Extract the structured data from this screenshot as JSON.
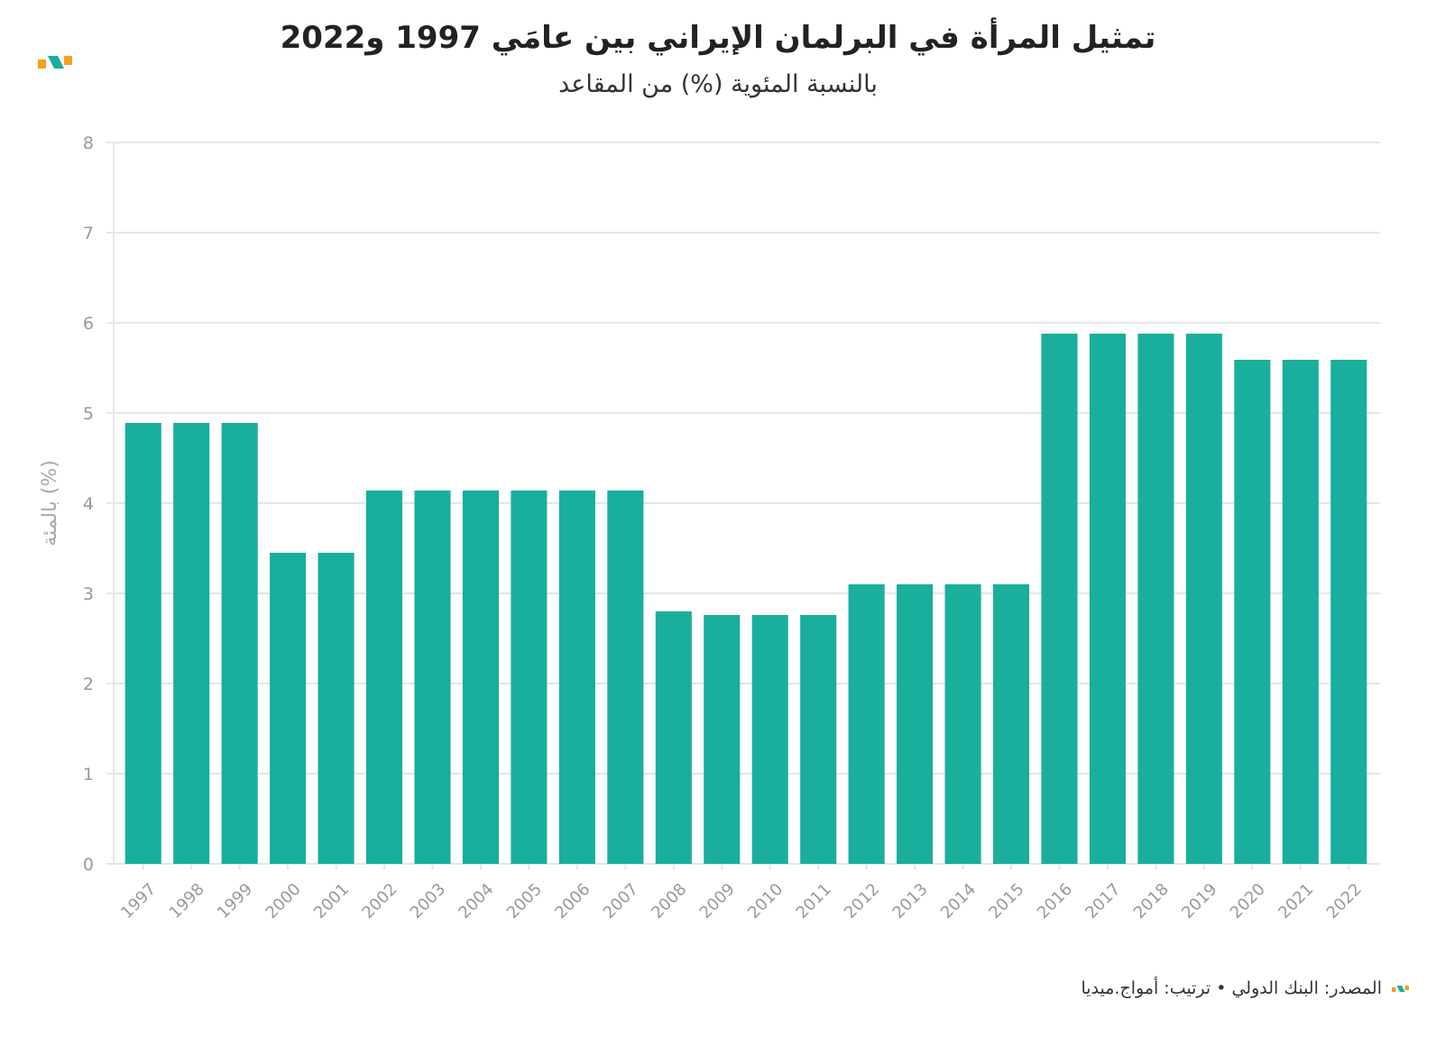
{
  "header": {
    "title": "تمثيل المرأة في البرلمان الإيراني بين عامَي 1997 و2022",
    "subtitle": "بالنسبة المئوية (%) من المقاعد"
  },
  "footer": {
    "source": "المصدر: البنك الدولي • ترتيب: أمواج.ميديا"
  },
  "colors": {
    "bar": "#1aae9c",
    "logo_orange": "#f4a020",
    "logo_teal": "#1aae9c",
    "grid": "#e6e6e6",
    "tick": "#999999"
  },
  "chart_data": {
    "type": "bar",
    "categories": [
      "1997",
      "1998",
      "1999",
      "2000",
      "2001",
      "2002",
      "2003",
      "2004",
      "2005",
      "2006",
      "2007",
      "2008",
      "2009",
      "2010",
      "2011",
      "2012",
      "2013",
      "2014",
      "2015",
      "2016",
      "2017",
      "2018",
      "2019",
      "2020",
      "2021",
      "2022"
    ],
    "values": [
      4.89,
      4.89,
      4.89,
      3.45,
      3.45,
      4.14,
      4.14,
      4.14,
      4.14,
      4.14,
      4.14,
      2.8,
      2.76,
      2.76,
      2.76,
      3.1,
      3.1,
      3.1,
      3.1,
      5.88,
      5.88,
      5.88,
      5.88,
      5.59,
      5.59,
      5.59
    ],
    "title": "تمثيل المرأة في البرلمان الإيراني بين عامَي 1997 و2022",
    "subtitle": "بالنسبة المئوية (%) من المقاعد",
    "ylabel": "بالمئة (%)",
    "xlabel": "",
    "ylim": [
      0,
      8
    ],
    "yticks": [
      "0",
      "1",
      "2",
      "3",
      "4",
      "5",
      "6",
      "7",
      "8"
    ],
    "grid": true,
    "legend": "none"
  }
}
